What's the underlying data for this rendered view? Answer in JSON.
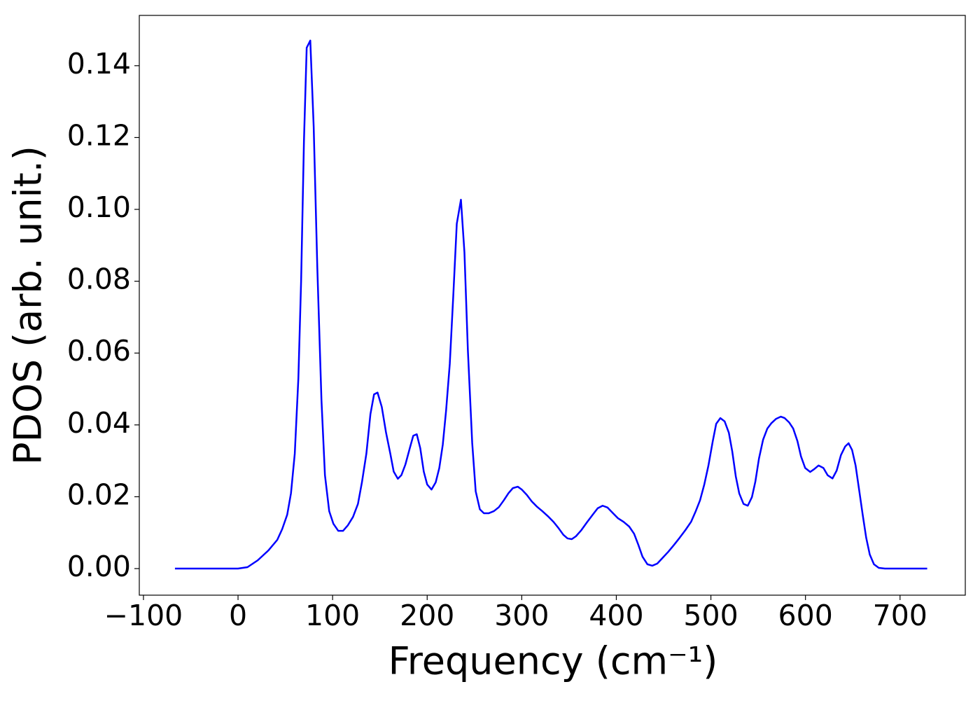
{
  "chart_data": {
    "type": "line",
    "x_label": "Frequency (cm⁻¹)",
    "y_label": "PDOS (arb. unit.)",
    "xlim": [
      -104.4,
      769
    ],
    "ylim": [
      -0.0074,
      0.154
    ],
    "xticks": [
      {
        "value": -100,
        "label": "−100"
      },
      0,
      100,
      200,
      300,
      400,
      500,
      600,
      700
    ],
    "yticks": [
      {
        "value": 0,
        "label": "0.00"
      },
      {
        "value": 0.02,
        "label": "0.02"
      },
      {
        "value": 0.04,
        "label": "0.04"
      },
      {
        "value": 0.06,
        "label": "0.06"
      },
      {
        "value": 0.08,
        "label": "0.08"
      },
      {
        "value": 0.1,
        "label": "0.10"
      },
      {
        "value": 0.12,
        "label": "0.12"
      },
      {
        "value": 0.14,
        "label": "0.14"
      }
    ],
    "grid": false,
    "series": [
      {
        "color": "#0000ff",
        "x": [
          -66.7,
          0,
          10,
          20.8,
          31.9,
          41.5,
          46.7,
          52,
          56,
          60,
          63.8,
          66.7,
          69.7,
          72.6,
          76.4,
          80,
          83.8,
          88.2,
          91.9,
          96.4,
          100.8,
          106,
          111,
          116,
          121.6,
          126.8,
          131,
          135.7,
          140,
          143.8,
          147.5,
          152,
          156.4,
          161,
          164.6,
          169,
          172.7,
          177,
          181.6,
          185.3,
          189,
          192.7,
          196.4,
          200,
          204.6,
          209,
          212.8,
          216.5,
          220,
          223.9,
          227.6,
          231.3,
          235.7,
          239.4,
          243,
          247.6,
          251.3,
          255.7,
          260,
          265,
          270.6,
          275.8,
          281,
          286,
          290.6,
          295.8,
          300,
          305.4,
          310.6,
          315.8,
          321.7,
          327.6,
          333.6,
          338.8,
          344,
          348.4,
          352.9,
          357.3,
          363,
          369,
          375,
          380.3,
          385.5,
          390.7,
          395.8,
          401.8,
          407.7,
          413.6,
          418.8,
          423.3,
          427.7,
          432.9,
          438,
          443.3,
          449,
          455,
          461,
          467,
          473,
          479,
          484,
          488.5,
          493,
          497.4,
          502,
          505.6,
          510,
          514.5,
          519,
          522.6,
          526.3,
          530,
          534.5,
          539,
          543.4,
          547,
          550.8,
          555.2,
          559.7,
          564,
          569,
          574,
          578,
          582.7,
          587,
          591.5,
          595.3,
          599.7,
          605,
          609.3,
          613.8,
          619,
          623.4,
          628.6,
          633,
          637.5,
          642,
          645.6,
          649.3,
          653,
          656.8,
          660.5,
          664.2,
          668,
          672.4,
          677.5,
          684,
          728.7
        ],
        "values": [
          0,
          0,
          0.0004,
          0.0023,
          0.005,
          0.008,
          0.011,
          0.015,
          0.021,
          0.032,
          0.053,
          0.08,
          0.119,
          0.145,
          0.147,
          0.123,
          0.084,
          0.047,
          0.026,
          0.016,
          0.0125,
          0.0105,
          0.0105,
          0.012,
          0.0144,
          0.018,
          0.024,
          0.032,
          0.043,
          0.0485,
          0.049,
          0.045,
          0.038,
          0.032,
          0.027,
          0.025,
          0.026,
          0.029,
          0.0335,
          0.037,
          0.0374,
          0.0335,
          0.027,
          0.0234,
          0.022,
          0.024,
          0.028,
          0.0345,
          0.044,
          0.057,
          0.076,
          0.096,
          0.1027,
          0.088,
          0.061,
          0.035,
          0.0215,
          0.0165,
          0.0154,
          0.0154,
          0.016,
          0.0171,
          0.019,
          0.021,
          0.0224,
          0.0228,
          0.022,
          0.0205,
          0.0187,
          0.0173,
          0.016,
          0.0146,
          0.013,
          0.0113,
          0.0094,
          0.0084,
          0.0082,
          0.009,
          0.0107,
          0.0129,
          0.015,
          0.0168,
          0.0175,
          0.017,
          0.0156,
          0.014,
          0.013,
          0.0117,
          0.0097,
          0.0066,
          0.0033,
          0.0012,
          0.0008,
          0.0014,
          0.003,
          0.0047,
          0.0066,
          0.0086,
          0.0107,
          0.013,
          0.016,
          0.019,
          0.0234,
          0.0287,
          0.0355,
          0.0403,
          0.0419,
          0.041,
          0.0378,
          0.0326,
          0.0257,
          0.0209,
          0.018,
          0.0175,
          0.0199,
          0.0242,
          0.0306,
          0.0359,
          0.039,
          0.0405,
          0.0417,
          0.0423,
          0.0419,
          0.0407,
          0.039,
          0.0355,
          0.0312,
          0.028,
          0.0269,
          0.0277,
          0.0287,
          0.028,
          0.026,
          0.0251,
          0.0273,
          0.0316,
          0.034,
          0.0349,
          0.033,
          0.0287,
          0.0218,
          0.015,
          0.0086,
          0.0039,
          0.0012,
          0.0002,
          0,
          0
        ]
      }
    ]
  }
}
